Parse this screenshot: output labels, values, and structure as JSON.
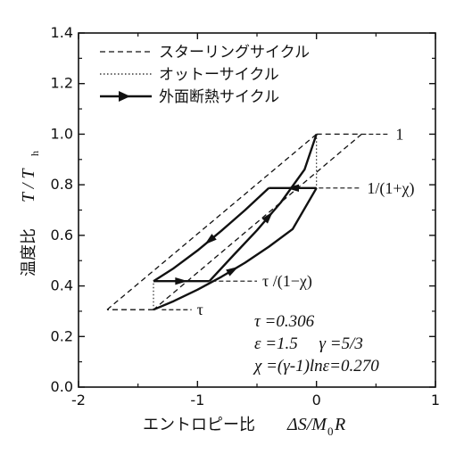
{
  "chart_data": {
    "type": "line",
    "xlabel": "エントロピー比",
    "xlabel_math": "ΔS/M",
    "xlabel_math_sub": "0",
    "xlabel_math_tail": "R",
    "ylabel": "温度比",
    "ylabel_math": "T / T",
    "ylabel_math_sub": "h",
    "xlim": [
      -2,
      1
    ],
    "ylim": [
      0.0,
      1.4
    ],
    "xticks": [
      "-2",
      "-1",
      "0",
      "1"
    ],
    "yticks": [
      "0.0",
      "0.2",
      "0.4",
      "0.6",
      "0.8",
      "1.0",
      "1.2",
      "1.4"
    ],
    "legend_position": "top-left",
    "legend": [
      {
        "label": "スターリングサイクル",
        "style": "dashed"
      },
      {
        "label": "オットーサイクル",
        "style": "dotted"
      },
      {
        "label": "外面断熱サイクル",
        "style": "solid-arrow"
      }
    ],
    "series": [
      {
        "name": "スターリングサイクル",
        "style": "dashed",
        "segments": [
          {
            "x": [
              0.0,
              0.38
            ],
            "y": [
              1.0,
              1.0
            ]
          },
          {
            "x": [
              0.38,
              -1.37
            ],
            "y": [
              1.0,
              0.306
            ]
          },
          {
            "x": [
              -1.37,
              -1.76
            ],
            "y": [
              0.306,
              0.306
            ]
          },
          {
            "x": [
              -1.76,
              0.0
            ],
            "y": [
              0.306,
              1.0
            ]
          }
        ]
      },
      {
        "name": "オットーサイクル",
        "style": "dotted",
        "segments": [
          {
            "x": [
              0.0,
              0.0
            ],
            "y": [
              1.0,
              0.787
            ]
          },
          {
            "x": [
              -1.37,
              -1.37
            ],
            "y": [
              0.306,
              0.419
            ]
          }
        ]
      },
      {
        "name": "外面断熱サイクル",
        "style": "solid",
        "segments": [
          {
            "x": [
              -1.37,
              -1.2,
              -1.0,
              -0.8,
              -0.6,
              -0.4,
              -0.2,
              0.0
            ],
            "y": [
              0.306,
              0.34,
              0.385,
              0.436,
              0.492,
              0.555,
              0.625,
              0.787
            ]
          },
          {
            "x": [
              0.0,
              -0.4
            ],
            "y": [
              0.787,
              0.787
            ]
          },
          {
            "x": [
              -0.4,
              -0.6,
              -0.8,
              -1.0,
              -1.2,
              -1.37
            ],
            "y": [
              0.787,
              0.7,
              0.618,
              0.54,
              0.47,
              0.419
            ]
          },
          {
            "x": [
              -1.37,
              -0.9
            ],
            "y": [
              0.419,
              0.419
            ]
          },
          {
            "x": [
              -0.9,
              -0.7,
              -0.5,
              -0.3,
              -0.1,
              0.0
            ],
            "y": [
              0.419,
              0.52,
              0.62,
              0.73,
              0.86,
              1.0
            ]
          }
        ]
      }
    ],
    "reference_lines": [
      {
        "y": 1.0,
        "x": [
          0.38,
          0.62
        ],
        "label": "1"
      },
      {
        "y": 0.787,
        "x": [
          0.02,
          0.38
        ],
        "label": "1/(1+χ)"
      },
      {
        "y": 0.419,
        "x": [
          -0.88,
          -0.5
        ],
        "label": "τ /(1−χ)"
      },
      {
        "y": 0.306,
        "x": [
          -1.3,
          -1.05
        ],
        "label": "τ"
      }
    ],
    "annotations": [
      {
        "text": "τ =0.306"
      },
      {
        "text": "ε =1.5     γ =5/3"
      },
      {
        "text": "χ =(γ-1)lnε=0.270"
      }
    ]
  }
}
